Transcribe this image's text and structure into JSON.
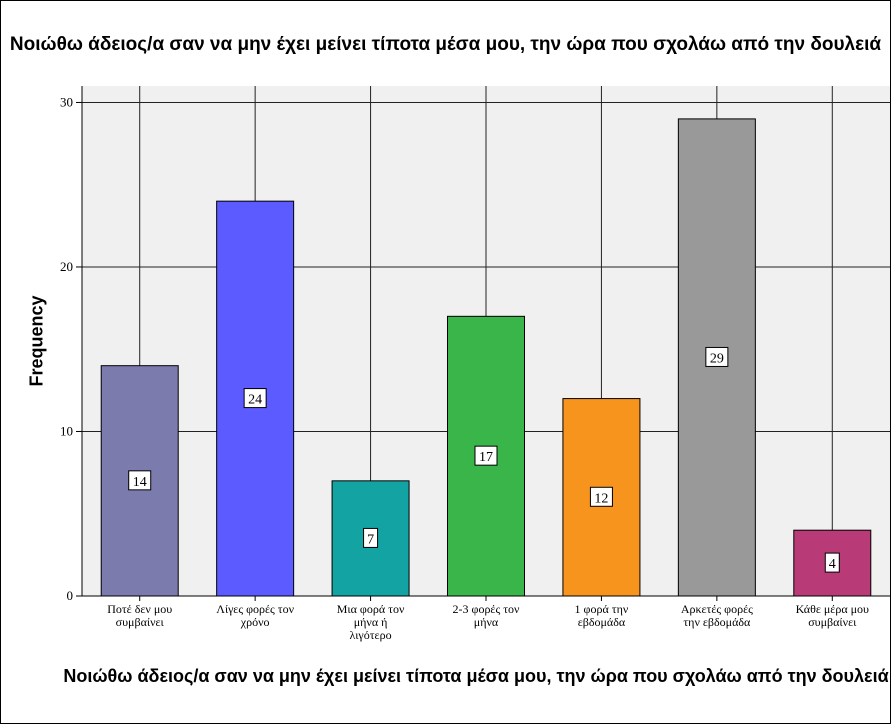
{
  "chart_data": {
    "type": "bar",
    "title": "Νοιώθω άδειος/α σαν να μην έχει μείνει τίποτα μέσα μου, την ώρα που σχολάω από την δουλειά",
    "xlabel": "Νοιώθω άδειος/α σαν να μην έχει μείνει τίποτα μέσα μου, την ώρα που σχολάω από την δουλειά",
    "ylabel": "Frequency",
    "ylim": [
      0,
      31
    ],
    "yticks": [
      0,
      10,
      20,
      30
    ],
    "grid": true,
    "categories": [
      [
        "Ποτέ δεν μου",
        "συμβαίνει"
      ],
      [
        "Λίγες φορές τον",
        "χρόνο"
      ],
      [
        "Μια φορά τον",
        "μήνα ή",
        "λιγότερο"
      ],
      [
        "2-3 φορές τον",
        "μήνα"
      ],
      [
        "1 φορά την",
        "εβδομάδα"
      ],
      [
        "Αρκετές φορές",
        "την εβδομάδα"
      ],
      [
        "Κάθε μέρα μου",
        "συμβαίνει"
      ]
    ],
    "values": [
      14,
      24,
      7,
      17,
      12,
      29,
      4
    ],
    "colors": [
      "#7b7bad",
      "#5b5bff",
      "#14a3a3",
      "#39b54a",
      "#f7941d",
      "#999999",
      "#b83b78"
    ]
  }
}
